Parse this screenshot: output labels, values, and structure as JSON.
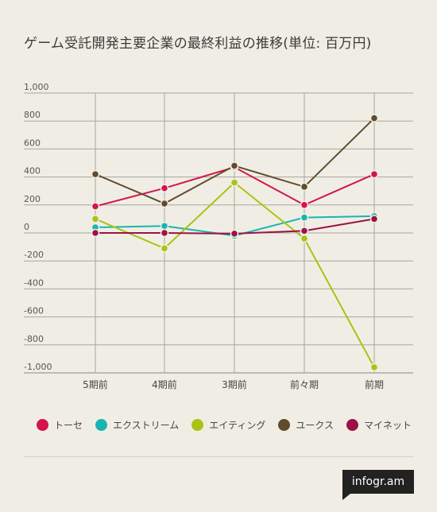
{
  "title": "ゲーム受託開発主要企業の最終利益の推移(単位: 百万円)",
  "brand": "infogr.am",
  "chart_data": {
    "type": "line",
    "categories": [
      "5期前",
      "4期前",
      "3期前",
      "前々期",
      "前期"
    ],
    "ylim": [
      -1000,
      1000
    ],
    "yticks": [
      1000,
      800,
      600,
      400,
      200,
      0,
      -200,
      -400,
      -600,
      -800,
      -1000
    ],
    "ytick_labels": [
      "1,000",
      "800",
      "600",
      "400",
      "200",
      "0",
      "-200",
      "-400",
      "-600",
      "-800",
      "-1,000"
    ],
    "grid": true,
    "legend_position": "bottom",
    "series": [
      {
        "name": "トーセ",
        "color": "#d4144a",
        "values": [
          190,
          320,
          470,
          200,
          420
        ]
      },
      {
        "name": "エクストリーム",
        "color": "#19b5b0",
        "values": [
          40,
          50,
          -20,
          110,
          120
        ]
      },
      {
        "name": "エイティング",
        "color": "#a9c312",
        "values": [
          100,
          -110,
          360,
          -40,
          -960
        ]
      },
      {
        "name": "ユークス",
        "color": "#624a2c",
        "values": [
          420,
          210,
          480,
          330,
          820
        ]
      },
      {
        "name": "マイネット",
        "color": "#9c1246",
        "values": [
          0,
          0,
          -5,
          15,
          100
        ]
      }
    ]
  }
}
